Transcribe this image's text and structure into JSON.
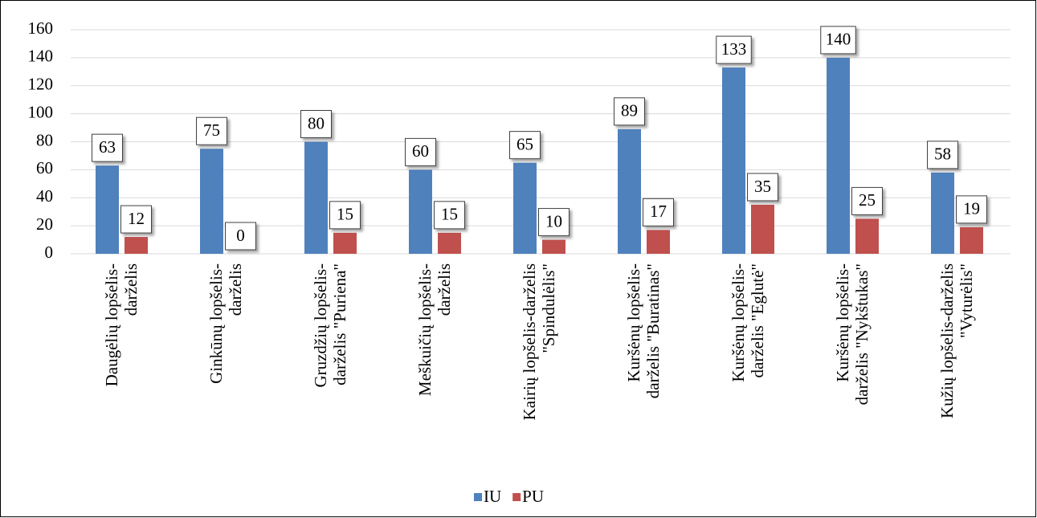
{
  "chart_data": {
    "type": "bar",
    "categories": [
      [
        "Daugėlių lopšelis-",
        "darželis"
      ],
      [
        "Ginkūnų lopšelis-",
        "darželis"
      ],
      [
        "Gruzdžių lopšelis-",
        "darželis \"Puriena\""
      ],
      [
        "Meškuičių lopšelis-",
        "darželis"
      ],
      [
        "Kairių lopšelis-darželis",
        "\"Spindulėlis\""
      ],
      [
        "Kuršėnų lopšelis-",
        "darželis \"Buratinas\""
      ],
      [
        "Kuršėnų lopšelis-",
        "darželis \"Eglutė\""
      ],
      [
        "Kuršėnų lopšelis-",
        "darželis \"Nykštukas\""
      ],
      [
        "Kužių lopšelis-darželis",
        "\"Vyturėlis\""
      ]
    ],
    "series": [
      {
        "name": "IU",
        "color": "#4f81bd",
        "values": [
          63,
          75,
          80,
          60,
          65,
          89,
          133,
          140,
          58
        ]
      },
      {
        "name": "PU",
        "color": "#c0504d",
        "values": [
          12,
          0,
          15,
          15,
          10,
          17,
          35,
          25,
          19
        ]
      }
    ],
    "ylim": [
      0,
      160
    ],
    "yticks": [
      0,
      20,
      40,
      60,
      80,
      100,
      120,
      140,
      160
    ],
    "grid": true,
    "legend": "bottom"
  }
}
